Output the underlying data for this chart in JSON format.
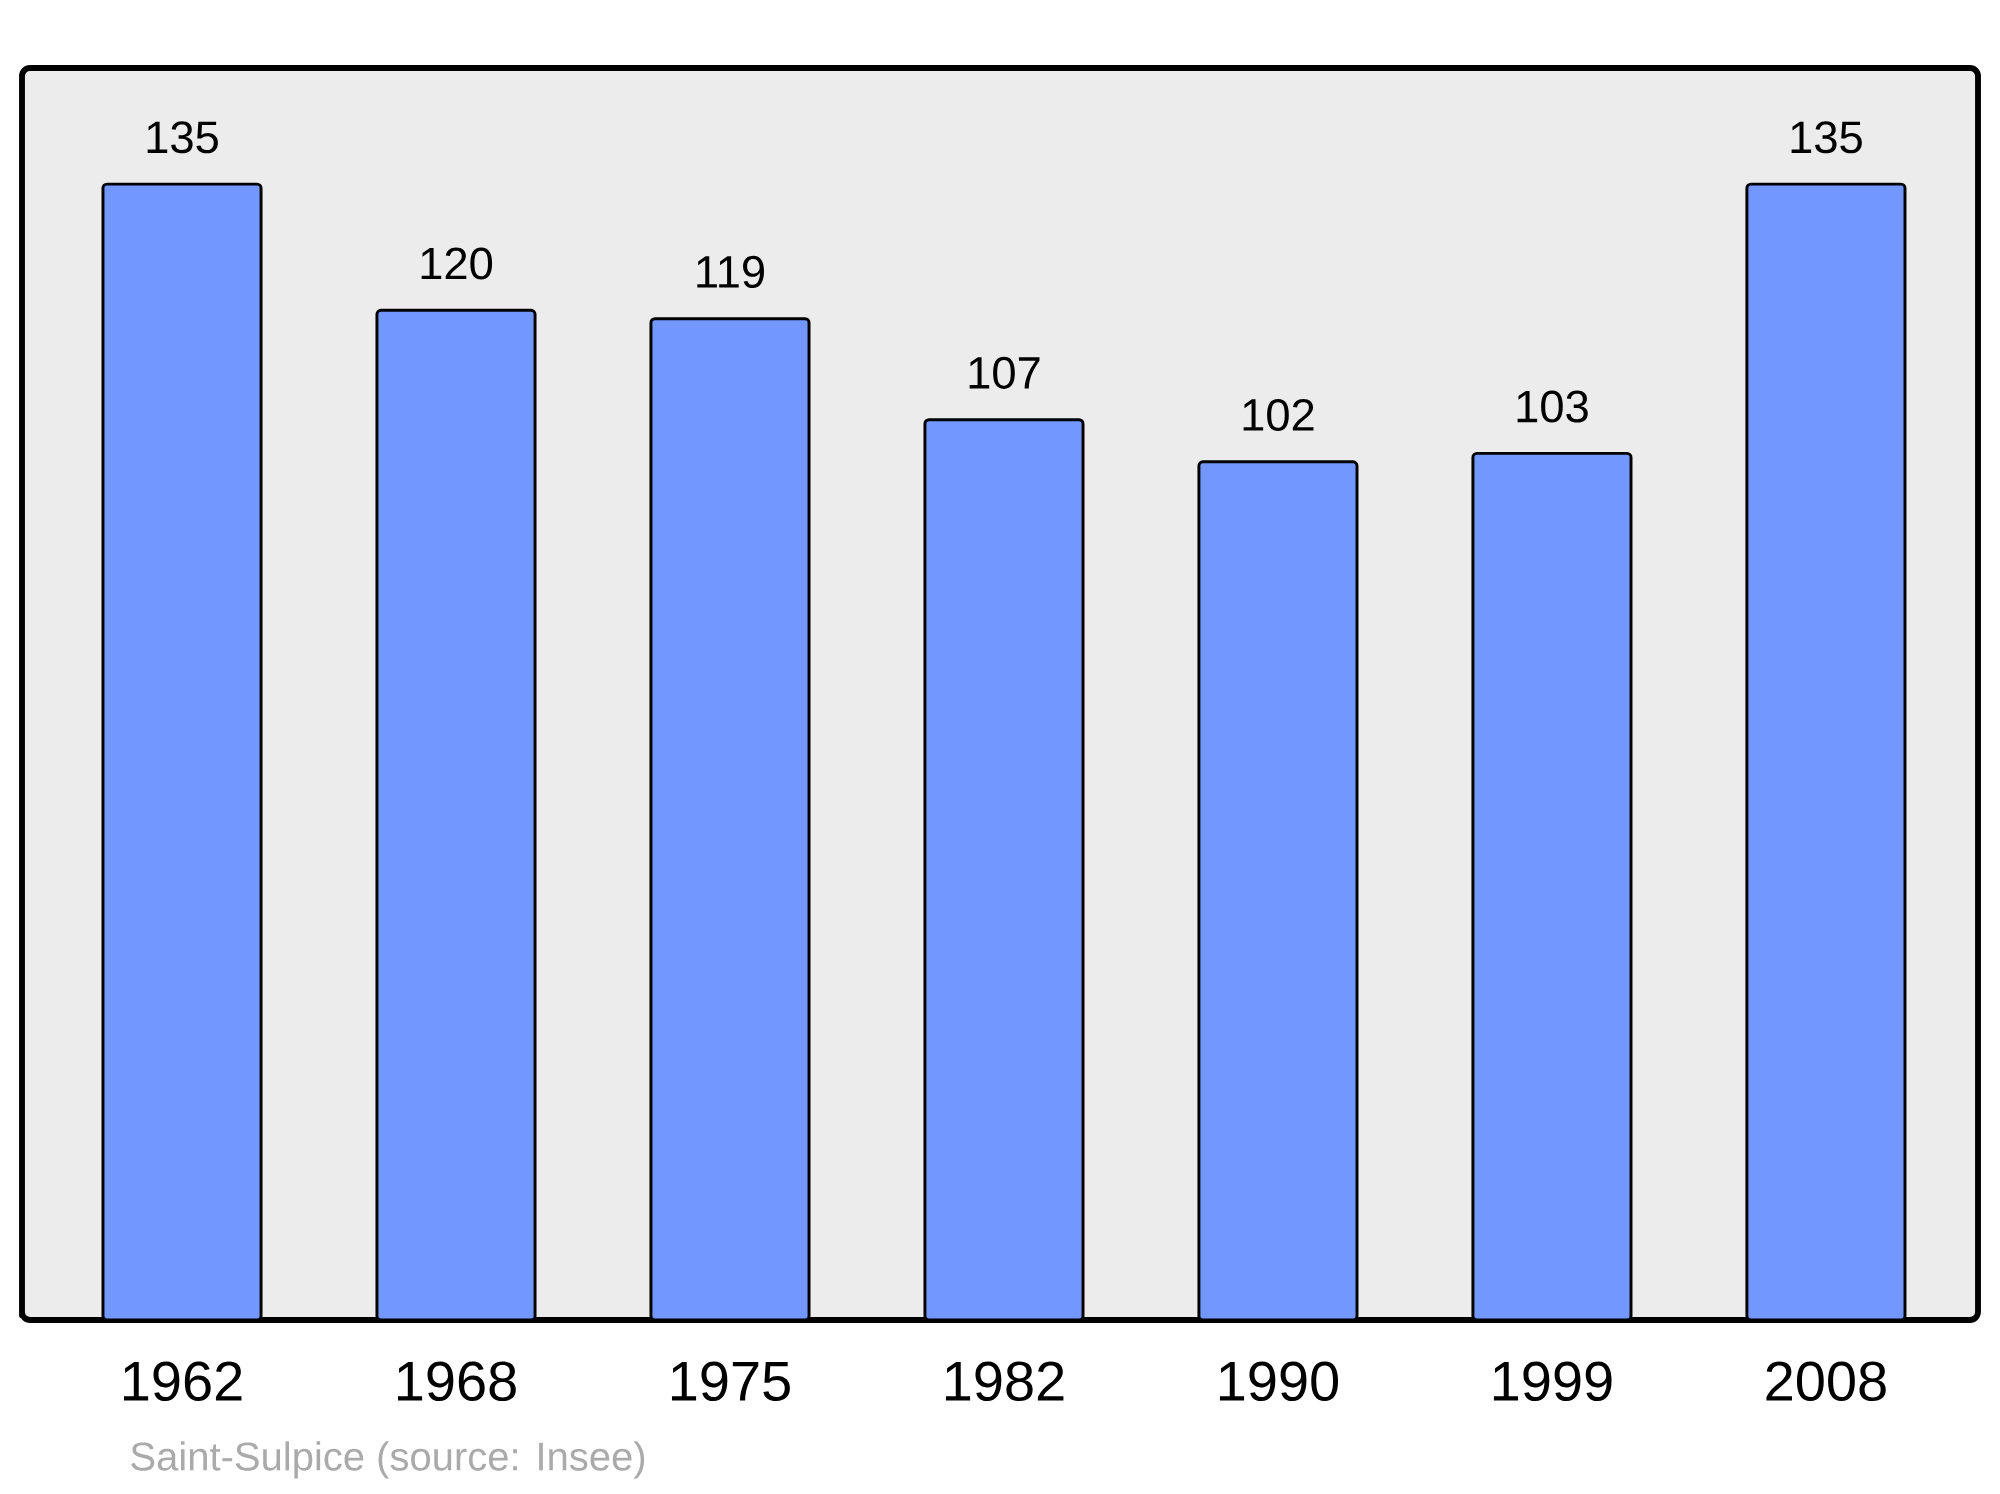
{
  "chart_data": {
    "type": "bar",
    "categories": [
      "1962",
      "1968",
      "1975",
      "1982",
      "1990",
      "1999",
      "2008"
    ],
    "values": [
      135,
      120,
      119,
      107,
      102,
      103,
      135
    ],
    "color": "#7298ff",
    "data_labels": true,
    "annotations": [
      "Saint-Sulpice    (source: Insee)"
    ]
  }
}
